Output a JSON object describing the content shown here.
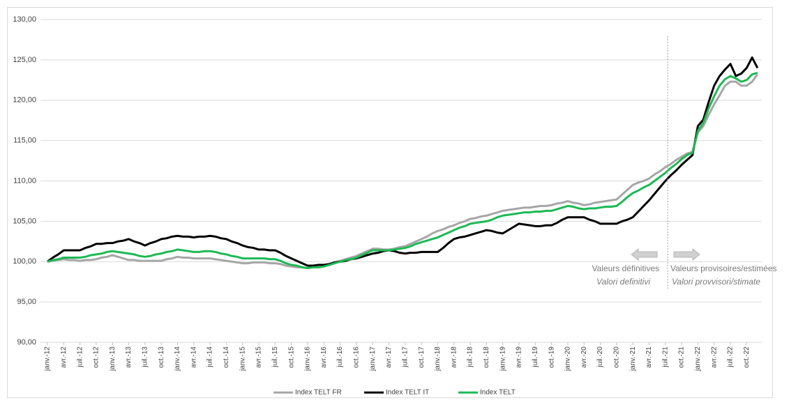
{
  "chart_data": {
    "type": "line",
    "categories": [
      "janv.-12",
      null,
      null,
      "avr.-12",
      null,
      null,
      "juil.-12",
      null,
      null,
      "oct.-12",
      null,
      null,
      "janv.-13",
      null,
      null,
      "avr.-13",
      null,
      null,
      "juil.-13",
      null,
      null,
      "oct.-13",
      null,
      null,
      "janv.-14",
      null,
      null,
      "avr.-14",
      null,
      null,
      "juil.-14",
      null,
      null,
      "oct.-14",
      null,
      null,
      "janv.-15",
      null,
      null,
      "avr.-15",
      null,
      null,
      "juil.-15",
      null,
      null,
      "oct.-15",
      null,
      null,
      "janv.-16",
      null,
      null,
      "avr.-16",
      null,
      null,
      "juil.-16",
      null,
      null,
      "oct.-16",
      null,
      null,
      "janv.-17",
      null,
      null,
      "avr.-17",
      null,
      null,
      "juil.-17",
      null,
      null,
      "oct.-17",
      null,
      null,
      "janv.-18",
      null,
      null,
      "avr.-18",
      null,
      null,
      "juil.-18",
      null,
      null,
      "oct.-18",
      null,
      null,
      "janv.-19",
      null,
      null,
      "avr.-19",
      null,
      null,
      "juil.-19",
      null,
      null,
      "oct.-19",
      null,
      null,
      "janv.-20",
      null,
      null,
      "avr.-20",
      null,
      null,
      "juil.-20",
      null,
      null,
      "oct.-20",
      null,
      null,
      "janv.-21",
      null,
      null,
      "avr.-21",
      null,
      null,
      "juil.-21",
      null,
      null,
      "oct.-21",
      null,
      null,
      "janv.-22",
      null,
      null,
      "avr.-22",
      null,
      null,
      "juil.-22",
      null,
      null,
      "oct.-22",
      null,
      null
    ],
    "series": [
      {
        "name": "Index TELT FR",
        "color": "#a6a6a6",
        "values": [
          100,
          100.1,
          100.2,
          100.3,
          100.2,
          100.2,
          100.1,
          100.2,
          100.2,
          100.3,
          100.5,
          100.6,
          100.8,
          100.6,
          100.4,
          100.2,
          100.2,
          100.1,
          100.1,
          100.1,
          100.1,
          100.1,
          100.3,
          100.4,
          100.6,
          100.5,
          100.5,
          100.4,
          100.4,
          100.4,
          100.4,
          100.3,
          100.2,
          100.1,
          100.0,
          99.9,
          99.8,
          99.8,
          99.9,
          99.9,
          99.9,
          99.8,
          99.8,
          99.7,
          99.5,
          99.4,
          99.3,
          99.3,
          99.2,
          99.3,
          99.3,
          99.4,
          99.6,
          99.9,
          100.1,
          100.3,
          100.5,
          100.7,
          101.0,
          101.3,
          101.6,
          101.6,
          101.5,
          101.5,
          101.6,
          101.8,
          101.9,
          102.2,
          102.5,
          102.8,
          103.1,
          103.5,
          103.8,
          104.0,
          104.3,
          104.5,
          104.8,
          105.0,
          105.3,
          105.4,
          105.6,
          105.7,
          105.9,
          106.1,
          106.3,
          106.4,
          106.5,
          106.6,
          106.7,
          106.7,
          106.8,
          106.9,
          106.9,
          107.0,
          107.2,
          107.3,
          107.5,
          107.3,
          107.2,
          107.0,
          107.1,
          107.3,
          107.4,
          107.5,
          107.6,
          107.7,
          108.3,
          108.9,
          109.5,
          109.8,
          110.0,
          110.3,
          110.8,
          111.2,
          111.7,
          112.1,
          112.6,
          113.0,
          113.4,
          113.6,
          116.0,
          116.8,
          118.2,
          119.5,
          120.6,
          121.8,
          122.3,
          122.3,
          121.8,
          121.8,
          122.3,
          123.2
        ]
      },
      {
        "name": "Index TELT IT",
        "color": "#000000",
        "values": [
          100,
          100.5,
          100.9,
          101.4,
          101.4,
          101.4,
          101.4,
          101.7,
          101.9,
          102.2,
          102.2,
          102.3,
          102.3,
          102.5,
          102.6,
          102.8,
          102.5,
          102.3,
          102.0,
          102.3,
          102.5,
          102.8,
          102.9,
          103.1,
          103.2,
          103.1,
          103.1,
          103.0,
          103.1,
          103.1,
          103.2,
          103.1,
          102.9,
          102.8,
          102.5,
          102.3,
          102.0,
          101.8,
          101.7,
          101.5,
          101.5,
          101.4,
          101.4,
          101.1,
          100.7,
          100.4,
          100.1,
          99.8,
          99.5,
          99.5,
          99.6,
          99.6,
          99.7,
          99.9,
          100.0,
          100.1,
          100.3,
          100.4,
          100.6,
          100.8,
          101.0,
          101.1,
          101.3,
          101.4,
          101.3,
          101.1,
          101.0,
          101.1,
          101.1,
          101.2,
          101.2,
          101.2,
          101.2,
          101.7,
          102.3,
          102.8,
          103.0,
          103.1,
          103.3,
          103.5,
          103.7,
          103.9,
          103.8,
          103.6,
          103.5,
          103.9,
          104.3,
          104.7,
          104.6,
          104.5,
          104.4,
          104.4,
          104.5,
          104.5,
          104.8,
          105.2,
          105.5,
          105.5,
          105.5,
          105.5,
          105.2,
          105.0,
          104.7,
          104.7,
          104.7,
          104.7,
          105.0,
          105.2,
          105.5,
          106.2,
          106.9,
          107.6,
          108.4,
          109.2,
          110.0,
          110.7,
          111.3,
          112.0,
          112.6,
          113.2,
          116.8,
          117.6,
          119.8,
          121.8,
          123.0,
          123.8,
          124.5,
          123.0,
          123.3,
          124.0,
          125.3,
          124.0
        ]
      },
      {
        "name": "Index TELT",
        "color": "#1db954",
        "values": [
          100,
          100.2,
          100.3,
          100.5,
          100.5,
          100.5,
          100.5,
          100.6,
          100.8,
          100.9,
          101.0,
          101.2,
          101.3,
          101.2,
          101.1,
          101.0,
          100.9,
          100.7,
          100.6,
          100.7,
          100.9,
          101.0,
          101.2,
          101.3,
          101.5,
          101.4,
          101.3,
          101.2,
          101.2,
          101.3,
          101.3,
          101.2,
          101.0,
          100.9,
          100.7,
          100.6,
          100.4,
          100.4,
          100.4,
          100.4,
          100.4,
          100.3,
          100.3,
          100.1,
          99.8,
          99.6,
          99.5,
          99.3,
          99.2,
          99.3,
          99.3,
          99.4,
          99.6,
          99.8,
          100.0,
          100.2,
          100.3,
          100.5,
          100.8,
          101.1,
          101.4,
          101.4,
          101.4,
          101.4,
          101.5,
          101.6,
          101.7,
          101.9,
          102.2,
          102.4,
          102.6,
          102.8,
          103.0,
          103.3,
          103.6,
          103.9,
          104.2,
          104.4,
          104.7,
          104.8,
          104.9,
          105.0,
          105.2,
          105.5,
          105.7,
          105.8,
          105.9,
          106.0,
          106.1,
          106.1,
          106.2,
          106.2,
          106.3,
          106.3,
          106.5,
          106.7,
          106.9,
          106.8,
          106.6,
          106.5,
          106.6,
          106.6,
          106.7,
          106.8,
          106.8,
          106.9,
          107.4,
          108.0,
          108.5,
          108.8,
          109.2,
          109.5,
          110.0,
          110.5,
          111.0,
          111.6,
          112.1,
          112.7,
          113.2,
          113.5,
          116.2,
          117.2,
          119.0,
          120.5,
          121.8,
          122.6,
          123.0,
          122.7,
          122.3,
          122.5,
          123.2,
          123.4
        ]
      }
    ],
    "ylim": [
      90,
      130
    ],
    "yticks": [
      {
        "value": 90,
        "label": "90,00"
      },
      {
        "value": 95,
        "label": "95,00"
      },
      {
        "value": 100,
        "label": "100,00"
      },
      {
        "value": 105,
        "label": "105,00"
      },
      {
        "value": 110,
        "label": "110,00"
      },
      {
        "value": 115,
        "label": "115,00"
      },
      {
        "value": 120,
        "label": "120,00"
      },
      {
        "value": 125,
        "label": "125,00"
      },
      {
        "value": 130,
        "label": "130,00"
      }
    ],
    "grid": true,
    "legend": "bottom",
    "annotations": {
      "left_fr": "Valeurs définitives",
      "left_it": "Valori definitivi",
      "right_fr": "Valeurs provisoires/estimées",
      "right_it": "Valori provvisori/stimate"
    }
  }
}
